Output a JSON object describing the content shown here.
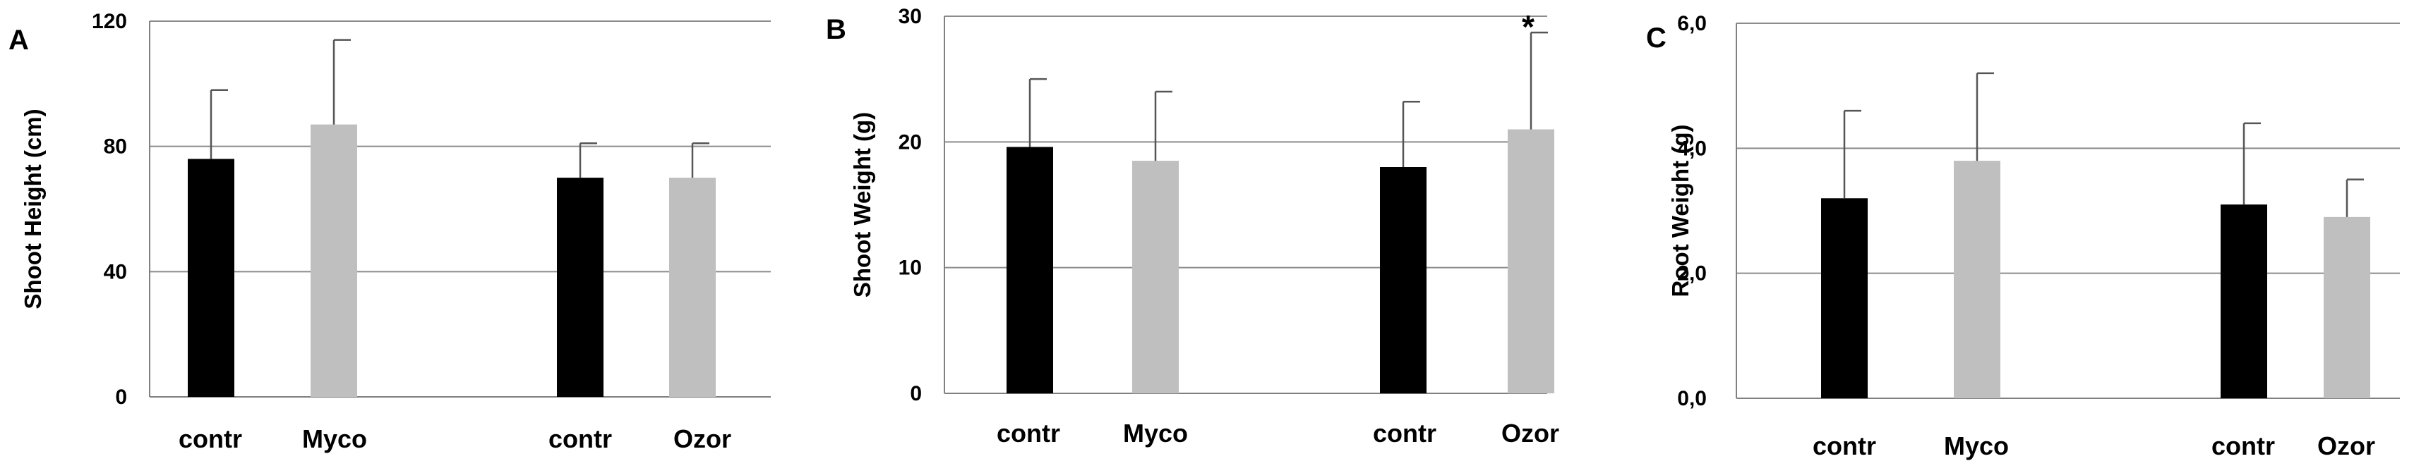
{
  "colors": {
    "control": "#000000",
    "treatment": "#bfbfbf",
    "grid": "#8c8c8c",
    "axis": "#808080",
    "error_bar": "#555555"
  },
  "chart_data": [
    {
      "type": "bar",
      "panel_label": "A",
      "ylabel": "Shoot Height (cm)",
      "ylim": [
        0,
        120
      ],
      "yticks": [
        "0",
        "40",
        "80",
        "120"
      ],
      "grid": true,
      "categories": [
        "contr",
        "Myco",
        "contr",
        "Ozor"
      ],
      "groups": [
        0,
        0,
        1,
        1
      ],
      "values": [
        76,
        87,
        70,
        70
      ],
      "errors": [
        22,
        27,
        11,
        11
      ],
      "bar_colors": [
        "control",
        "treatment",
        "control",
        "treatment"
      ],
      "annotations": [
        "",
        "",
        "",
        ""
      ]
    },
    {
      "type": "bar",
      "panel_label": "B",
      "ylabel": "Shoot Weight (g)",
      "ylim": [
        0,
        30
      ],
      "yticks": [
        "0",
        "10",
        "20",
        "30"
      ],
      "grid": true,
      "categories": [
        "contr",
        "Myco",
        "contr",
        "Ozor"
      ],
      "groups": [
        0,
        0,
        1,
        1
      ],
      "values": [
        19.6,
        18.5,
        18.0,
        21.0
      ],
      "errors": [
        5.4,
        5.5,
        5.2,
        7.7
      ],
      "bar_colors": [
        "control",
        "treatment",
        "control",
        "treatment"
      ],
      "annotations": [
        "",
        "",
        "",
        "*"
      ]
    },
    {
      "type": "bar",
      "panel_label": "C",
      "ylabel": "Root Weight (g)",
      "ylim": [
        0,
        6
      ],
      "yticks": [
        "0,0",
        "2,0",
        "4,0",
        "6,0"
      ],
      "grid": true,
      "categories": [
        "contr",
        "Myco",
        "contr",
        "Ozor"
      ],
      "groups": [
        0,
        0,
        1,
        1
      ],
      "values": [
        3.2,
        3.8,
        3.1,
        2.9
      ],
      "errors": [
        1.4,
        1.4,
        1.3,
        0.6
      ],
      "bar_colors": [
        "control",
        "treatment",
        "control",
        "treatment"
      ],
      "annotations": [
        "",
        "",
        "",
        ""
      ]
    }
  ]
}
